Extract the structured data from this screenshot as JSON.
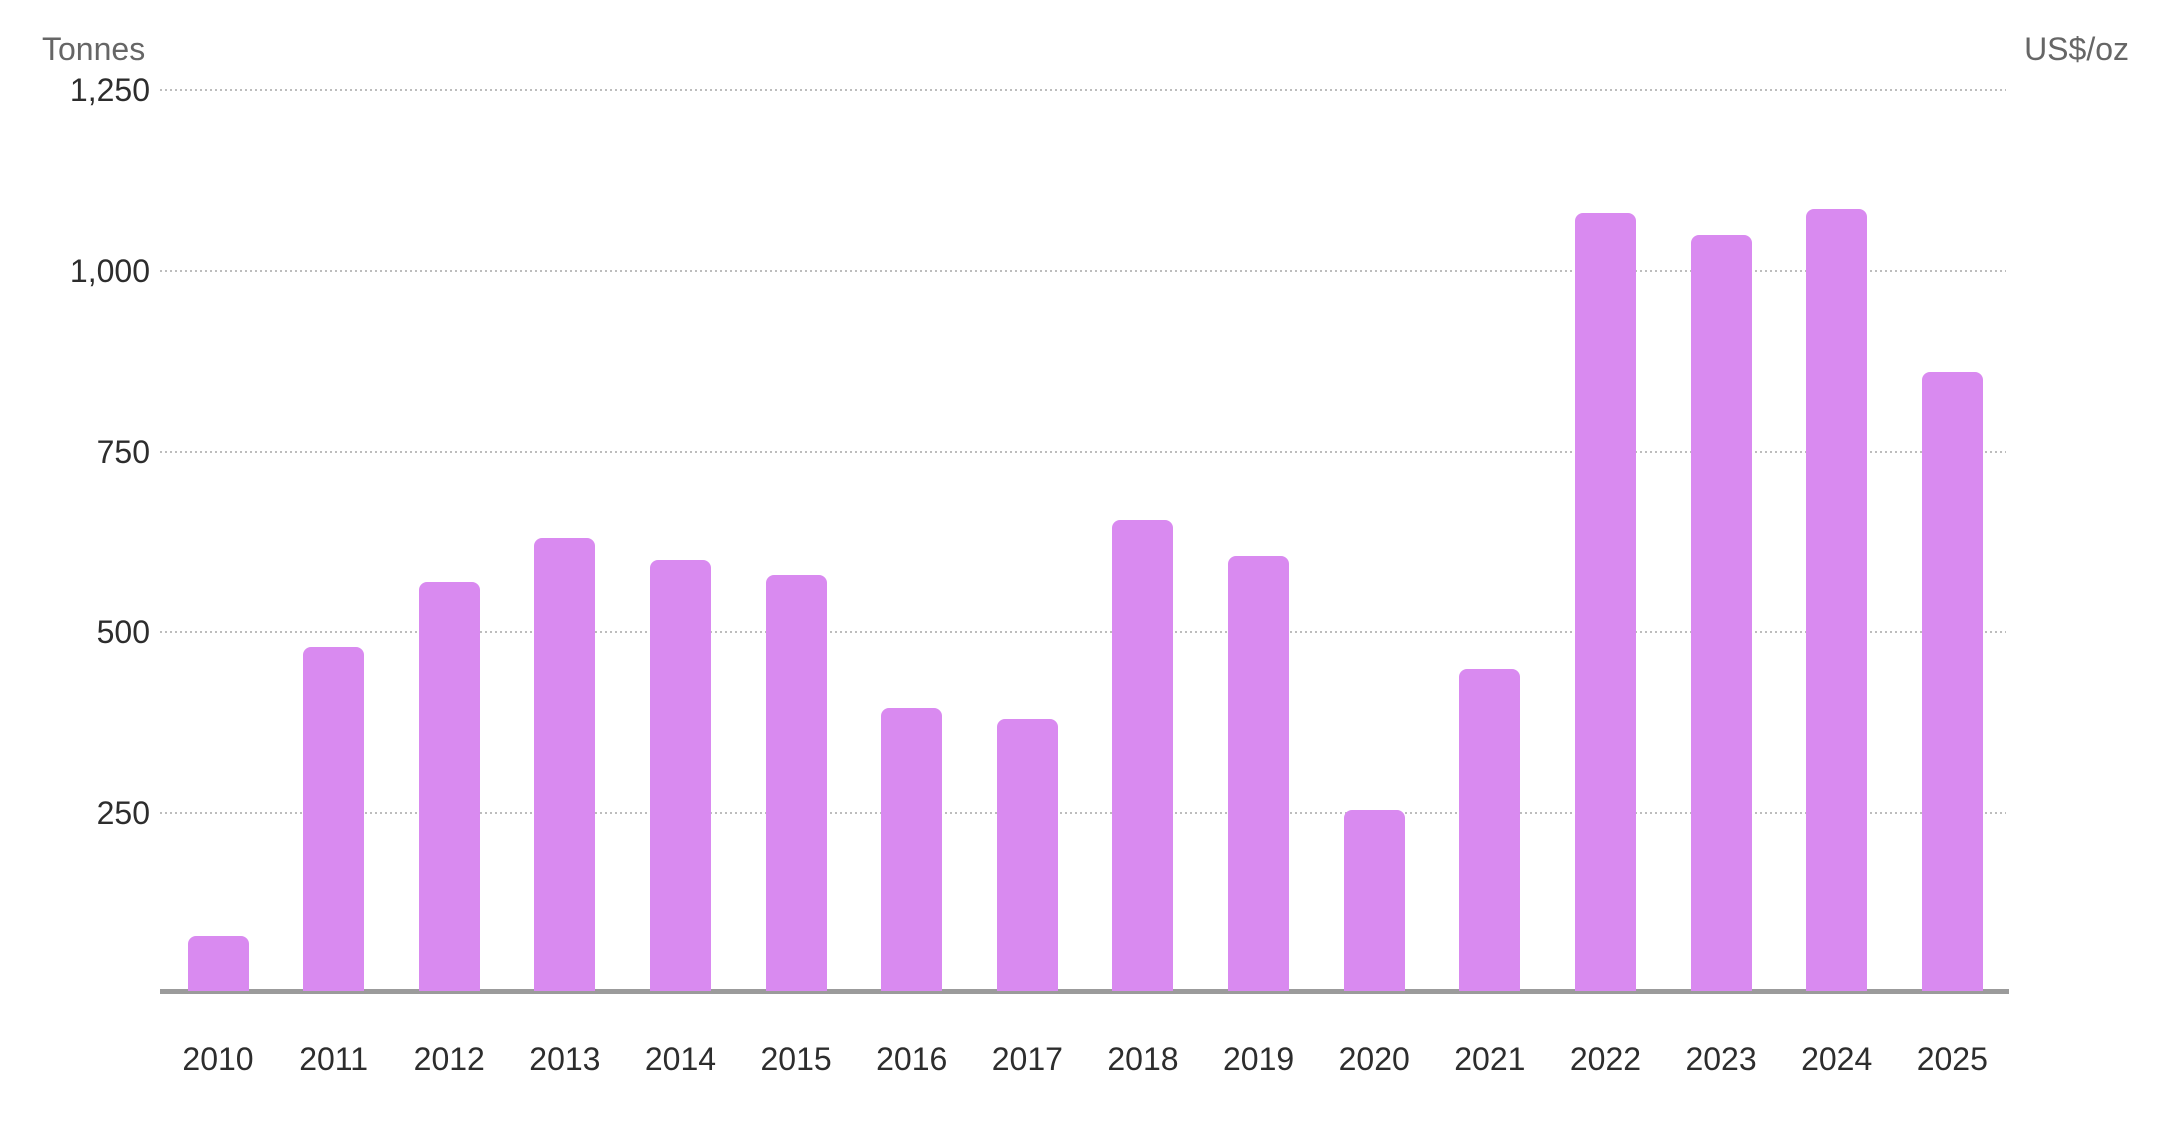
{
  "chart_data": {
    "type": "bar",
    "title": "",
    "left_axis_title": "Tonnes",
    "right_axis_title": "US$/oz",
    "categories": [
      "2010",
      "2011",
      "2012",
      "2013",
      "2014",
      "2015",
      "2016",
      "2017",
      "2018",
      "2019",
      "2020",
      "2021",
      "2022",
      "2023",
      "2024",
      "2025"
    ],
    "series": [
      {
        "name": "Tonnes",
        "values": [
          80,
          480,
          570,
          630,
          600,
          580,
          395,
          380,
          655,
          605,
          255,
          450,
          1080,
          1050,
          1085,
          860
        ]
      }
    ],
    "xlabel": "",
    "ylim": [
      0,
      1250
    ],
    "ytick_values": [
      250,
      500,
      750,
      1000,
      1250
    ],
    "ytick_labels": [
      "250",
      "500",
      "750",
      "1,000",
      "1,250"
    ],
    "right_axis_tick_labels": "none",
    "gridlines": "horizontal-dotted",
    "legend_position": "none"
  },
  "colors": {
    "background": "#ffffff",
    "bar": "#d98af0",
    "axis_line": "#9b9b9b",
    "gridline": "#bdbdbd",
    "tick_label": "#2d2d2d",
    "axis_title": "#666666"
  }
}
